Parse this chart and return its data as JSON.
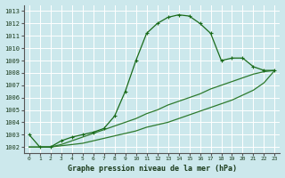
{
  "title": "Graphe pression niveau de la mer (hPa)",
  "background_color": "#cce8ec",
  "grid_color": "#ffffff",
  "line_color_main": "#1a6b1a",
  "line_color_trend": "#2d7a2d",
  "x_values": [
    0,
    1,
    2,
    3,
    4,
    5,
    6,
    7,
    8,
    9,
    10,
    11,
    12,
    13,
    14,
    15,
    16,
    17,
    18,
    19,
    20,
    21,
    22,
    23
  ],
  "y_main": [
    1003.0,
    1002.0,
    1002.0,
    1002.5,
    1002.8,
    1003.0,
    1003.2,
    1003.5,
    1004.5,
    1006.5,
    1009.0,
    1011.2,
    1012.0,
    1012.5,
    1012.7,
    1012.6,
    1012.0,
    1011.2,
    1009.0,
    1009.2,
    1009.2,
    1008.5,
    1008.2,
    1008.2
  ],
  "y_trend1": [
    1002.0,
    1002.0,
    1002.0,
    1002.1,
    1002.2,
    1002.3,
    1002.5,
    1002.7,
    1002.9,
    1003.1,
    1003.3,
    1003.6,
    1003.8,
    1004.0,
    1004.3,
    1004.6,
    1004.9,
    1005.2,
    1005.5,
    1005.8,
    1006.2,
    1006.6,
    1007.2,
    1008.2
  ],
  "y_trend2": [
    1002.0,
    1002.0,
    1002.0,
    1002.2,
    1002.5,
    1002.8,
    1003.1,
    1003.4,
    1003.7,
    1004.0,
    1004.3,
    1004.7,
    1005.0,
    1005.4,
    1005.7,
    1006.0,
    1006.3,
    1006.7,
    1007.0,
    1007.3,
    1007.6,
    1007.9,
    1008.1,
    1008.2
  ],
  "ylim": [
    1001.5,
    1013.5
  ],
  "xlim": [
    -0.5,
    23.5
  ],
  "yticks": [
    1002,
    1003,
    1004,
    1005,
    1006,
    1007,
    1008,
    1009,
    1010,
    1011,
    1012,
    1013
  ],
  "xticks": [
    0,
    1,
    2,
    3,
    4,
    5,
    6,
    7,
    8,
    9,
    10,
    11,
    12,
    13,
    14,
    15,
    16,
    17,
    18,
    19,
    20,
    21,
    22,
    23
  ]
}
